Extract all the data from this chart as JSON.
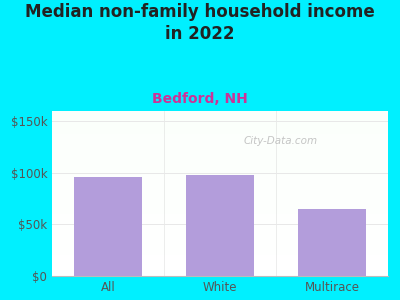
{
  "title": "Median non-family household income\nin 2022",
  "subtitle": "Bedford, NH",
  "categories": [
    "All",
    "White",
    "Multirace"
  ],
  "values": [
    96000,
    98000,
    65000
  ],
  "bar_color": "#b39ddb",
  "title_fontsize": 12,
  "subtitle_fontsize": 10,
  "subtitle_color": "#cc3399",
  "title_color": "#222222",
  "tick_color": "#555555",
  "ylim": [
    0,
    160000
  ],
  "yticks": [
    0,
    50000,
    100000,
    150000
  ],
  "ytick_labels": [
    "$0",
    "$50k",
    "$100k",
    "$150k"
  ],
  "bg_outer": "#00f0ff",
  "watermark": "City-Data.com",
  "watermark_color": "#bbbbbb",
  "grid_color": "#e8e8e8"
}
